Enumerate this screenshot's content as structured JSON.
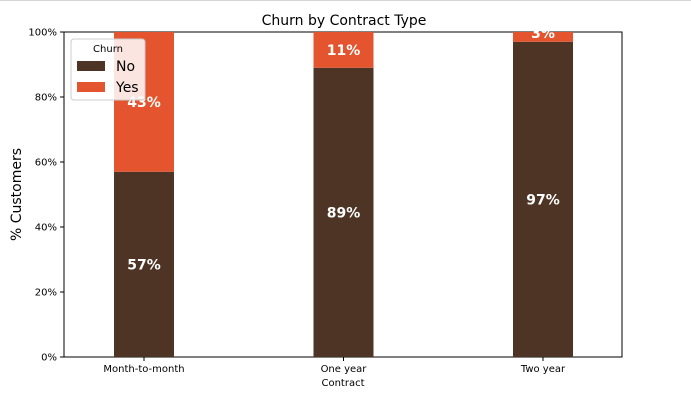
{
  "chart_data": {
    "type": "bar",
    "stacked": true,
    "title": "Churn by Contract Type",
    "xlabel": "Contract",
    "ylabel": "% Customers",
    "ylim": [
      0,
      1
    ],
    "ytick_values": [
      0,
      0.2,
      0.4,
      0.6,
      0.8,
      1.0
    ],
    "ytick_labels": [
      "0%",
      "20%",
      "40%",
      "60%",
      "80%",
      "100%"
    ],
    "categories": [
      "Month-to-month",
      "One year",
      "Two year"
    ],
    "series": [
      {
        "name": "No",
        "values": [
          0.57,
          0.89,
          0.97
        ],
        "labels": [
          "57%",
          "89%",
          "97%"
        ],
        "color": "#4d3425"
      },
      {
        "name": "Yes",
        "values": [
          0.43,
          0.11,
          0.03
        ],
        "labels": [
          "43%",
          "11%",
          "3%"
        ],
        "color": "#e4552f"
      }
    ],
    "legend": {
      "title": "Churn",
      "placement": "top-left"
    },
    "grid": false
  }
}
